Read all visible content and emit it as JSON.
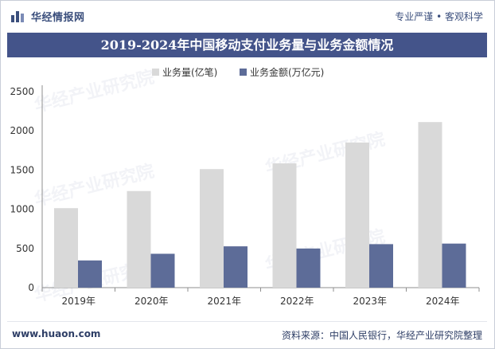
{
  "header": {
    "brand_name": "华经情报网",
    "brand_icon": "bar-chart-logo-icon",
    "slogan": "专业严谨 • 客观科学"
  },
  "chart_data": {
    "type": "bar",
    "title": "2019-2024年中国移动支付业务量与业务金额情况",
    "categories": [
      "2019年",
      "2020年",
      "2021年",
      "2022年",
      "2023年",
      "2024年"
    ],
    "series": [
      {
        "name": "业务量(亿笔)",
        "values": [
          1014,
          1232,
          1512,
          1585,
          1851,
          2112
        ],
        "color": "#d9d9d9"
      },
      {
        "name": "业务金额(万亿元)",
        "values": [
          347,
          432,
          527,
          499,
          555,
          562
        ],
        "color": "#5d6c98"
      }
    ],
    "ylim": [
      0,
      2500
    ],
    "yticks": [
      "0",
      "500",
      "1000",
      "1500",
      "2000",
      "2500"
    ],
    "ytick_values": [
      0,
      500,
      1000,
      1500,
      2000,
      2500
    ],
    "xlabel": "",
    "ylabel": "",
    "legend_position": "top",
    "grid": false
  },
  "footer": {
    "website": "www.huaon.com",
    "source": "资料来源：中国人民银行，华经产业研究院整理"
  }
}
